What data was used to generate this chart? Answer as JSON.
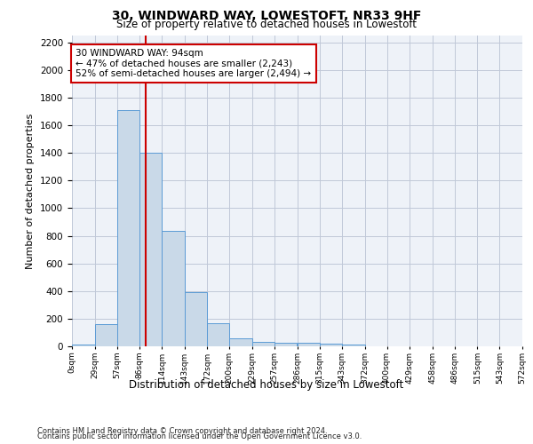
{
  "title_line1": "30, WINDWARD WAY, LOWESTOFT, NR33 9HF",
  "title_line2": "Size of property relative to detached houses in Lowestoft",
  "xlabel": "Distribution of detached houses by size in Lowestoft",
  "ylabel": "Number of detached properties",
  "footer_line1": "Contains HM Land Registry data © Crown copyright and database right 2024.",
  "footer_line2": "Contains public sector information licensed under the Open Government Licence v3.0.",
  "annotation_line1": "30 WINDWARD WAY: 94sqm",
  "annotation_line2": "← 47% of detached houses are smaller (2,243)",
  "annotation_line3": "52% of semi-detached houses are larger (2,494) →",
  "property_size": 94,
  "bin_edges": [
    0,
    29,
    57,
    86,
    114,
    143,
    172,
    200,
    229,
    257,
    286,
    315,
    343,
    372,
    400,
    429,
    458,
    486,
    515,
    543,
    572
  ],
  "bin_counts": [
    15,
    160,
    1710,
    1400,
    835,
    390,
    165,
    60,
    35,
    25,
    25,
    20,
    10,
    0,
    0,
    0,
    0,
    0,
    0,
    0
  ],
  "bar_color": "#c9d9e8",
  "bar_edge_color": "#5b9bd5",
  "vline_color": "#cc0000",
  "vline_x": 94,
  "annotation_box_color": "#cc0000",
  "grid_color": "#c0c8d8",
  "ylim": [
    0,
    2250
  ],
  "yticks": [
    0,
    200,
    400,
    600,
    800,
    1000,
    1200,
    1400,
    1600,
    1800,
    2000,
    2200
  ],
  "bg_color": "#eef2f8",
  "fig_width": 6.0,
  "fig_height": 5.0,
  "dpi": 100
}
